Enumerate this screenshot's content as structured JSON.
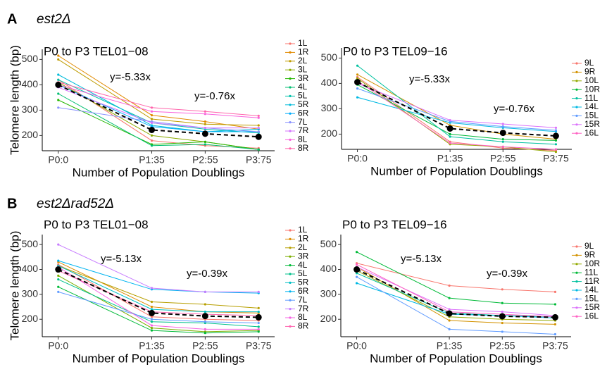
{
  "panels": [
    {
      "letter": "A",
      "title": "est2Δ"
    },
    {
      "letter": "B",
      "title": "est2Δrad52Δ"
    }
  ],
  "chart_data": [
    {
      "type": "line",
      "title": "P0 to P3 TEL01−08",
      "xlabel": "Number of Population Doublings",
      "ylabel": "Telomere length (bp)",
      "x": [
        0,
        35,
        55,
        75
      ],
      "xlim": [
        -6,
        81
      ],
      "xticks": [
        {
          "value": 0,
          "label": "P0:0"
        },
        {
          "value": 35,
          "label": "P1:35"
        },
        {
          "value": 55,
          "label": "P2:55"
        },
        {
          "value": 75,
          "label": "P3:75"
        }
      ],
      "ylim": [
        140,
        540
      ],
      "yticks": [
        200,
        300,
        400,
        500
      ],
      "annotations": [
        "y=-5.33x",
        "y=-0.76x"
      ],
      "mean": {
        "color": "#000000",
        "values": [
          400,
          222,
          207,
          195
        ]
      },
      "series": [
        {
          "name": "1L",
          "color": "#F8766D",
          "values": [
            420,
            180,
            160,
            150
          ]
        },
        {
          "name": "1R",
          "color": "#E18A00",
          "values": [
            515,
            280,
            255,
            225
          ]
        },
        {
          "name": "2L",
          "color": "#BE9C00",
          "values": [
            500,
            265,
            245,
            240
          ]
        },
        {
          "name": "3L",
          "color": "#8CAB00",
          "values": [
            410,
            200,
            175,
            145
          ]
        },
        {
          "name": "3R",
          "color": "#24B700",
          "values": [
            340,
            165,
            175,
            145
          ]
        },
        {
          "name": "4L",
          "color": "#00BE70",
          "values": [
            365,
            160,
            165,
            145
          ]
        },
        {
          "name": "5L",
          "color": "#00C1AB",
          "values": [
            420,
            250,
            225,
            210
          ]
        },
        {
          "name": "5R",
          "color": "#00BBDA",
          "values": [
            440,
            240,
            215,
            225
          ]
        },
        {
          "name": "6R",
          "color": "#00ACFC",
          "values": [
            400,
            235,
            215,
            215
          ]
        },
        {
          "name": "7L",
          "color": "#8B93FF",
          "values": [
            310,
            255,
            230,
            215
          ]
        },
        {
          "name": "7R",
          "color": "#D575FE",
          "values": [
            390,
            250,
            230,
            230
          ]
        },
        {
          "name": "8L",
          "color": "#F962DD",
          "values": [
            400,
            295,
            285,
            270
          ]
        },
        {
          "name": "8R",
          "color": "#FF65AC",
          "values": [
            410,
            310,
            295,
            278
          ]
        }
      ]
    },
    {
      "type": "line",
      "title": "P0 to P3 TEL09−16",
      "xlabel": "Number of Population Doublings",
      "x": [
        0,
        35,
        55,
        75
      ],
      "xlim": [
        -6,
        81
      ],
      "xticks": [
        {
          "value": 0,
          "label": "P0:0"
        },
        {
          "value": 35,
          "label": "P1:35"
        },
        {
          "value": 55,
          "label": "P2:55"
        },
        {
          "value": 75,
          "label": "P3:75"
        }
      ],
      "ylim": [
        140,
        540
      ],
      "yticks": [
        200,
        300,
        400,
        500
      ],
      "annotations": [
        "y=-5.33x",
        "y=-0.76x"
      ],
      "mean": {
        "color": "#000000",
        "values": [
          405,
          222,
          205,
          193
        ]
      },
      "series": [
        {
          "name": "9L",
          "color": "#F8766D",
          "values": [
            425,
            170,
            145,
            135
          ]
        },
        {
          "name": "9R",
          "color": "#D39200",
          "values": [
            435,
            235,
            200,
            180
          ]
        },
        {
          "name": "10L",
          "color": "#93AA00",
          "values": [
            420,
            160,
            150,
            130
          ]
        },
        {
          "name": "10R",
          "color": "#00BA38",
          "values": [
            395,
            200,
            180,
            175
          ]
        },
        {
          "name": "11L",
          "color": "#00C19F",
          "values": [
            470,
            190,
            170,
            160
          ]
        },
        {
          "name": "14L",
          "color": "#00B9E3",
          "values": [
            345,
            245,
            225,
            210
          ]
        },
        {
          "name": "15L",
          "color": "#619CFF",
          "values": [
            380,
            250,
            230,
            215
          ]
        },
        {
          "name": "15R",
          "color": "#DB72FB",
          "values": [
            400,
            255,
            240,
            225
          ]
        },
        {
          "name": "16L",
          "color": "#FF61C3",
          "values": [
            410,
            165,
            150,
            140
          ]
        }
      ]
    },
    {
      "type": "line",
      "title": "P0 to P3 TEL01−08",
      "xlabel": "Number of Population Doublings",
      "ylabel": "Telomere length (bp)",
      "x": [
        0,
        35,
        55,
        75
      ],
      "xlim": [
        -6,
        81
      ],
      "xticks": [
        {
          "value": 0,
          "label": "P0:0"
        },
        {
          "value": 35,
          "label": "P1:35"
        },
        {
          "value": 55,
          "label": "P2:55"
        },
        {
          "value": 75,
          "label": "P3:75"
        }
      ],
      "ylim": [
        130,
        540
      ],
      "yticks": [
        200,
        300,
        400,
        500
      ],
      "annotations": [
        "y=-5.13x",
        "y=-0.39x"
      ],
      "mean": {
        "color": "#000000",
        "values": [
          400,
          225,
          213,
          208
        ]
      },
      "series": [
        {
          "name": "1L",
          "color": "#F8766D",
          "values": [
            420,
            210,
            200,
            195
          ]
        },
        {
          "name": "1R",
          "color": "#DE8C00",
          "values": [
            430,
            250,
            230,
            225
          ]
        },
        {
          "name": "2L",
          "color": "#B79F00",
          "values": [
            415,
            270,
            260,
            245
          ]
        },
        {
          "name": "3R",
          "color": "#7CAE00",
          "values": [
            375,
            165,
            150,
            155
          ]
        },
        {
          "name": "4L",
          "color": "#00BA38",
          "values": [
            330,
            155,
            145,
            150
          ]
        },
        {
          "name": "5L",
          "color": "#00C08B",
          "values": [
            360,
            190,
            185,
            170
          ]
        },
        {
          "name": "5R",
          "color": "#00BFC4",
          "values": [
            415,
            240,
            230,
            230
          ]
        },
        {
          "name": "6R",
          "color": "#00B4F0",
          "values": [
            435,
            320,
            310,
            305
          ]
        },
        {
          "name": "7L",
          "color": "#619CFF",
          "values": [
            310,
            200,
            190,
            185
          ]
        },
        {
          "name": "7R",
          "color": "#C77CFF",
          "values": [
            500,
            325,
            310,
            310
          ]
        },
        {
          "name": "8L",
          "color": "#F564E3",
          "values": [
            410,
            175,
            160,
            160
          ]
        },
        {
          "name": "8R",
          "color": "#FF64B0",
          "values": [
            395,
            230,
            220,
            215
          ]
        }
      ]
    },
    {
      "type": "line",
      "title": "P0 to P3 TEL09−16",
      "xlabel": "Number of Population Doublings",
      "x": [
        0,
        35,
        55,
        75
      ],
      "xlim": [
        -6,
        81
      ],
      "xticks": [
        {
          "value": 0,
          "label": "P0:0"
        },
        {
          "value": 35,
          "label": "P1:35"
        },
        {
          "value": 55,
          "label": "P2:55"
        },
        {
          "value": 75,
          "label": "P3:75"
        }
      ],
      "ylim": [
        130,
        540
      ],
      "yticks": [
        200,
        300,
        400,
        500
      ],
      "annotations": [
        "y=-5.13x",
        "y=-0.39x"
      ],
      "mean": {
        "color": "#000000",
        "values": [
          400,
          223,
          212,
          208
        ]
      },
      "series": [
        {
          "name": "9L",
          "color": "#F8766D",
          "values": [
            425,
            335,
            320,
            310
          ]
        },
        {
          "name": "9R",
          "color": "#D39200",
          "values": [
            410,
            195,
            185,
            180
          ]
        },
        {
          "name": "10R",
          "color": "#93AA00",
          "values": [
            395,
            210,
            200,
            195
          ]
        },
        {
          "name": "11L",
          "color": "#00BA38",
          "values": [
            470,
            285,
            265,
            260
          ]
        },
        {
          "name": "11R",
          "color": "#00C19F",
          "values": [
            385,
            225,
            215,
            210
          ]
        },
        {
          "name": "14L",
          "color": "#00B9E3",
          "values": [
            345,
            220,
            215,
            205
          ]
        },
        {
          "name": "15L",
          "color": "#619CFF",
          "values": [
            370,
            160,
            150,
            140
          ]
        },
        {
          "name": "15R",
          "color": "#DB72FB",
          "values": [
            410,
            240,
            230,
            215
          ]
        },
        {
          "name": "16L",
          "color": "#FF61C3",
          "values": [
            420,
            230,
            220,
            210
          ]
        }
      ]
    }
  ]
}
